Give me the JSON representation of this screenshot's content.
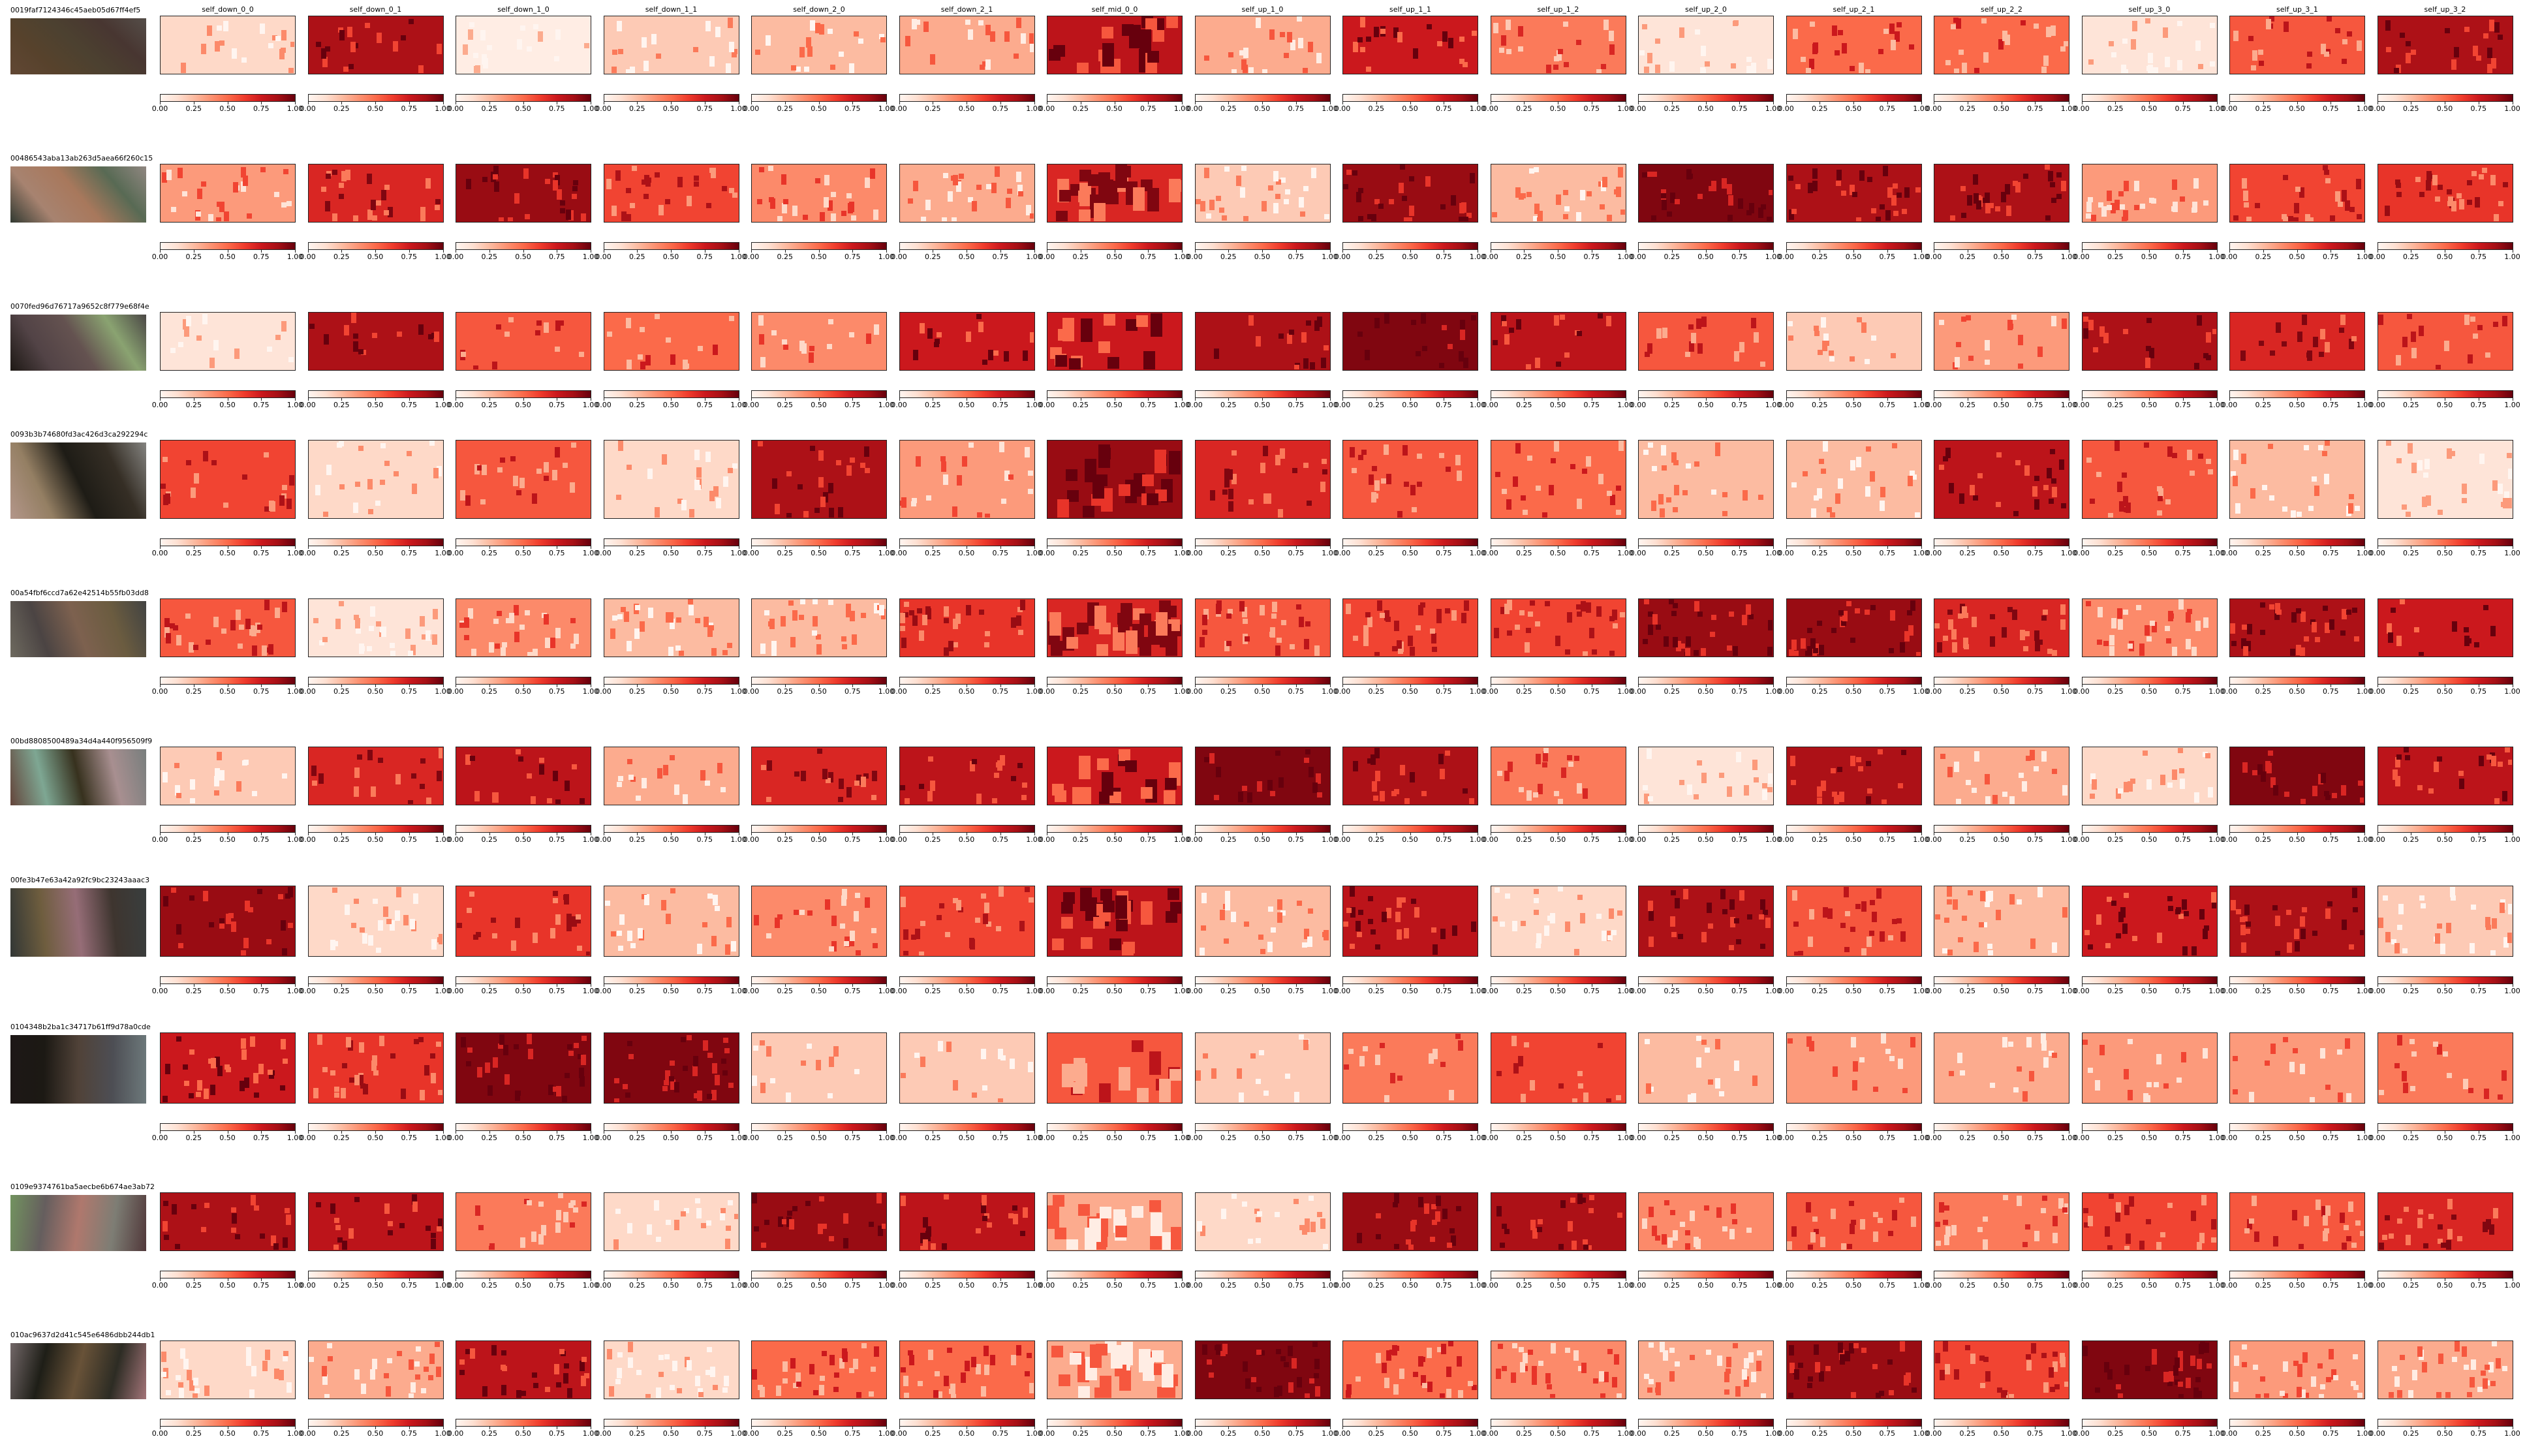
{
  "colormap": "Reds",
  "columns": [
    "self_down_0_0",
    "self_down_0_1",
    "self_down_1_0",
    "self_down_1_1",
    "self_down_2_0",
    "self_down_2_1",
    "self_mid_0_0",
    "self_up_1_0",
    "self_up_1_1",
    "self_up_1_2",
    "self_up_2_0",
    "self_up_2_1",
    "self_up_2_2",
    "self_up_3_0",
    "self_up_3_1",
    "self_up_3_2"
  ],
  "rows": [
    "0019faf7124346c45aeb05d67ff4ef5",
    "00486543aba13ab263d5aea66f260c15",
    "0070fed96d76717a9652c8f779e68f4e",
    "0093b3b74680fd3ac426d3ca292294c",
    "00a54fbf6ccd7a62e42514b55fb03dd8",
    "00bd8808500489a34d4a440f956509f9",
    "00fe3b47e63a42a92fc9bc23243aaac3",
    "0104348b2ba1c34717b61ff9d78a0cde",
    "0109e9374761ba5aecbe6b674ae3ab72",
    "010ac9637d2d41c545e6486dbb244db1"
  ],
  "colorbar_ticks": [
    "0.00",
    "0.25",
    "0.50",
    "0.75",
    "1.00"
  ],
  "chart_data": {
    "type": "heatmap",
    "colormap": "Reds",
    "vlim": [
      0,
      1
    ],
    "row_labels": [
      "0019faf7124346c45aeb05d67ff4ef5",
      "00486543aba13ab263d5aea66f260c15",
      "0070fed96d76717a9652c8f779e68f4e",
      "0093b3b74680fd3ac426d3ca292294c",
      "00a54fbf6ccd7a62e42514b55fb03dd8",
      "00bd8808500489a34d4a440f956509f9",
      "00fe3b47e63a42a92fc9bc23243aaac3",
      "0104348b2ba1c34717b61ff9d78a0cde",
      "0109e9374761ba5aecbe6b674ae3ab72",
      "010ac9637d2d41c545e6486dbb244db1"
    ],
    "column_labels": [
      "self_down_0_0",
      "self_down_0_1",
      "self_down_1_0",
      "self_down_1_1",
      "self_down_2_0",
      "self_down_2_1",
      "self_mid_0_0",
      "self_up_1_0",
      "self_up_1_1",
      "self_up_1_2",
      "self_up_2_0",
      "self_up_2_1",
      "self_up_2_2",
      "self_up_3_0",
      "self_up_3_1",
      "self_up_3_2"
    ],
    "mean_intensity": [
      [
        0.15,
        0.85,
        0.05,
        0.2,
        0.25,
        0.3,
        0.8,
        0.3,
        0.75,
        0.45,
        0.1,
        0.5,
        0.5,
        0.1,
        0.55,
        0.85
      ],
      [
        0.35,
        0.7,
        0.9,
        0.6,
        0.4,
        0.3,
        0.7,
        0.2,
        0.9,
        0.25,
        0.95,
        0.85,
        0.85,
        0.35,
        0.6,
        0.65
      ],
      [
        0.1,
        0.85,
        0.55,
        0.5,
        0.4,
        0.75,
        0.75,
        0.85,
        0.95,
        0.8,
        0.55,
        0.2,
        0.35,
        0.85,
        0.7,
        0.55
      ],
      [
        0.6,
        0.15,
        0.55,
        0.15,
        0.85,
        0.35,
        0.9,
        0.7,
        0.55,
        0.5,
        0.25,
        0.25,
        0.8,
        0.55,
        0.25,
        0.1
      ],
      [
        0.55,
        0.1,
        0.4,
        0.25,
        0.25,
        0.65,
        0.7,
        0.55,
        0.6,
        0.6,
        0.9,
        0.9,
        0.7,
        0.4,
        0.85,
        0.75
      ],
      [
        0.2,
        0.7,
        0.8,
        0.3,
        0.7,
        0.8,
        0.75,
        0.95,
        0.85,
        0.45,
        0.1,
        0.85,
        0.3,
        0.15,
        0.95,
        0.8
      ],
      [
        0.9,
        0.15,
        0.65,
        0.25,
        0.4,
        0.6,
        0.8,
        0.25,
        0.8,
        0.15,
        0.85,
        0.55,
        0.25,
        0.75,
        0.85,
        0.2
      ],
      [
        0.75,
        0.65,
        0.95,
        0.95,
        0.2,
        0.2,
        0.55,
        0.2,
        0.45,
        0.6,
        0.25,
        0.35,
        0.3,
        0.35,
        0.35,
        0.45
      ],
      [
        0.85,
        0.8,
        0.45,
        0.15,
        0.9,
        0.8,
        0.3,
        0.15,
        0.9,
        0.85,
        0.4,
        0.55,
        0.45,
        0.6,
        0.55,
        0.7
      ],
      [
        0.15,
        0.3,
        0.8,
        0.15,
        0.5,
        0.5,
        0.3,
        0.95,
        0.5,
        0.4,
        0.3,
        0.9,
        0.6,
        0.95,
        0.35,
        0.3
      ]
    ]
  }
}
